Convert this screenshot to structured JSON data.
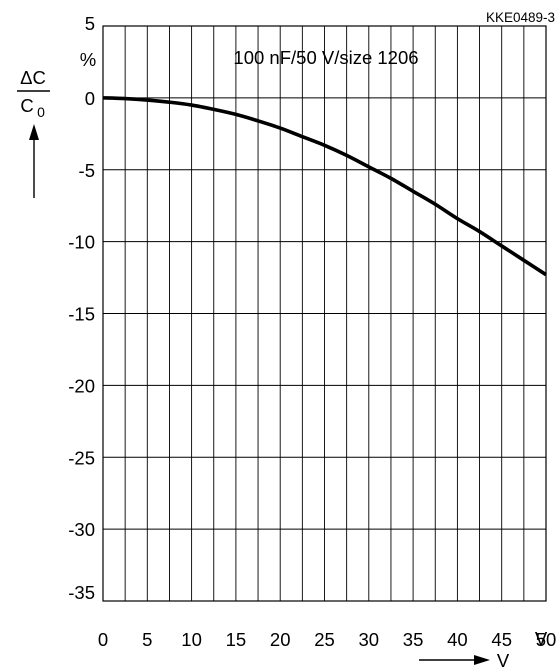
{
  "chart_data": {
    "type": "line",
    "figure_id": "KKE0489-3",
    "annotation": "100 nF/50 V/size 1206",
    "x_unit": "V",
    "x_arrow_label": "V",
    "y_unit": "%",
    "y_label_numerator": "ΔC",
    "y_label_denominator_base": "C",
    "y_label_denominator_sub": "0",
    "xlim": [
      0,
      50
    ],
    "ylim": [
      -35,
      5
    ],
    "x_ticks": [
      "0",
      "5",
      "10",
      "15",
      "20",
      "25",
      "30",
      "35",
      "40",
      "45",
      "50"
    ],
    "y_ticks": [
      "5",
      "0",
      "-5",
      "-10",
      "-15",
      "-20",
      "-25",
      "-30",
      "-35"
    ],
    "y_tick_values": [
      5,
      0,
      -5,
      -10,
      -15,
      -20,
      -25,
      -30,
      -35
    ],
    "grid": true,
    "series": [
      {
        "x": [
          0,
          2.5,
          5,
          7.5,
          10,
          12.5,
          15,
          17.5,
          20,
          22.5,
          25,
          27.5,
          30,
          32.5,
          35,
          37.5,
          40,
          42.5,
          45,
          47.5,
          50
        ],
        "y": [
          0,
          -0.05,
          -0.15,
          -0.3,
          -0.5,
          -0.8,
          -1.15,
          -1.6,
          -2.1,
          -2.7,
          -3.3,
          -4.0,
          -4.8,
          -5.6,
          -6.5,
          -7.4,
          -8.4,
          -9.3,
          -10.3,
          -11.3,
          -12.3
        ]
      }
    ]
  }
}
